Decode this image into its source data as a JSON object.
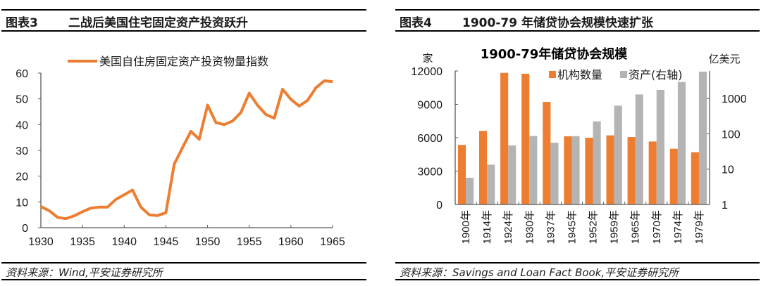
{
  "colors": {
    "orange": "#ED7D31",
    "gray": "#B4B4B4",
    "axis": "#595959"
  },
  "left": {
    "fig_number": "图表3",
    "fig_title": "二战后美国住宅固定资产投资跃升",
    "source": "资料来源：Wind,平安证券研究所"
  },
  "right": {
    "fig_number": "图表4",
    "fig_title": "1900-79 年储贷协会规模快速扩张",
    "source": "资料来源：Savings and Loan Fact Book,平安证券研究所"
  },
  "chart_data": [
    {
      "type": "line",
      "title": "",
      "xlabel": "",
      "ylabel": "",
      "legend": [
        "美国自住房固定资产投资物量指数"
      ],
      "legend_position": "top",
      "xlim": [
        1930,
        1965
      ],
      "ylim": [
        0,
        60
      ],
      "x_ticks": [
        "1930",
        "1935",
        "1940",
        "1945",
        "1950",
        "1955",
        "1960",
        "1965"
      ],
      "y_ticks": [
        "0",
        "10",
        "20",
        "30",
        "40",
        "50",
        "60"
      ],
      "grid": false,
      "series": [
        {
          "name": "美国自住房固定资产投资物量指数",
          "x": [
            1930,
            1931,
            1932,
            1933,
            1934,
            1935,
            1936,
            1937,
            1938,
            1939,
            1940,
            1941,
            1942,
            1943,
            1944,
            1945,
            1946,
            1947,
            1948,
            1949,
            1950,
            1951,
            1952,
            1953,
            1954,
            1955,
            1956,
            1957,
            1958,
            1959,
            1960,
            1961,
            1962,
            1963,
            1964,
            1965
          ],
          "values": [
            8.2,
            6.6,
            4.0,
            3.5,
            4.6,
            6.2,
            7.6,
            8.0,
            8.0,
            11.0,
            12.8,
            14.6,
            8.0,
            5.0,
            4.7,
            5.8,
            24.7,
            31.1,
            37.4,
            34.3,
            47.6,
            40.8,
            40.0,
            41.4,
            44.7,
            52.2,
            47.5,
            43.9,
            42.5,
            53.7,
            49.8,
            47.2,
            49.4,
            54.3,
            57.0,
            56.7
          ]
        }
      ]
    },
    {
      "type": "bar",
      "title": "1900-79年储贷协会规模",
      "xlabel": "",
      "ylabel": "家",
      "ylabel_right": "亿美元",
      "categories": [
        "1900年",
        "1914年",
        "1924年",
        "1930年",
        "1937年",
        "1945年",
        "1952年",
        "1959年",
        "1965年",
        "1970年",
        "1974年",
        "1979年"
      ],
      "ylim": [
        0,
        12000
      ],
      "y_ticks": [
        "0",
        "3000",
        "6000",
        "9000",
        "12000"
      ],
      "ylim_right": [
        1,
        6000
      ],
      "y_scale_right": "log",
      "y_ticks_right": [
        "1",
        "10",
        "100",
        "1000"
      ],
      "legend_position": "top",
      "grid": false,
      "series": [
        {
          "name": "机构数量",
          "axis": "left",
          "values": [
            5350,
            6610,
            11830,
            11750,
            9220,
            6130,
            6000,
            6210,
            6060,
            5660,
            5010,
            4700
          ]
        },
        {
          "name": "资产(右轴)",
          "axis": "right",
          "values": [
            5.7,
            13.4,
            47,
            87,
            56,
            86,
            225,
            625,
            1300,
            1740,
            2920,
            5750
          ]
        }
      ]
    }
  ]
}
